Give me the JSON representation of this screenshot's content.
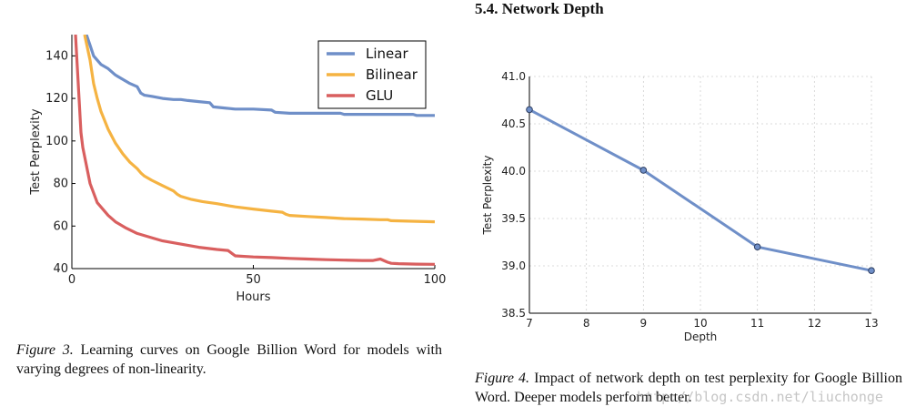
{
  "section_heading": "5.4. Network Depth",
  "figure3": {
    "caption_lead": "Figure 3.",
    "caption_text": " Learning curves on Google Billion Word for models with varying degrees of non-linearity."
  },
  "figure4": {
    "caption_lead": "Figure 4.",
    "caption_text": " Impact of network depth on test perplexity for Google Billion Word. Deeper models perform better."
  },
  "watermark": "http://blog.csdn.net/liuchonge",
  "chart_data": [
    {
      "type": "line",
      "xlabel": "Hours",
      "ylabel": "Test Perplexity",
      "xlim": [
        0,
        100
      ],
      "ylim": [
        40,
        150
      ],
      "xticks": [
        0,
        50,
        100
      ],
      "yticks": [
        40,
        60,
        80,
        100,
        120,
        140
      ],
      "grid": false,
      "legend": "top-right",
      "series": [
        {
          "name": "Linear",
          "color": "#6f8fc8",
          "x": [
            4,
            5,
            6,
            8,
            10,
            12,
            14,
            16,
            18,
            19,
            20,
            22,
            25,
            28,
            30,
            32,
            35,
            38,
            39,
            42,
            45,
            50,
            55,
            56,
            60,
            65,
            70,
            74,
            75,
            80,
            85,
            90,
            94,
            95,
            100
          ],
          "y": [
            150,
            145,
            140,
            136,
            134,
            131,
            129,
            127,
            125.5,
            122.5,
            121.5,
            121,
            120,
            119.5,
            119.5,
            119,
            118.5,
            118,
            116,
            115.5,
            115,
            115,
            114.5,
            113.5,
            113,
            113,
            113,
            113,
            112.5,
            112.5,
            112.5,
            112.5,
            112.5,
            112,
            112
          ]
        },
        {
          "name": "Bilinear",
          "color": "#f5b342",
          "x": [
            3.5,
            5,
            6,
            7,
            8,
            10,
            12,
            14,
            16,
            18,
            19,
            20,
            22,
            25,
            28,
            29,
            30,
            33,
            36,
            40,
            45,
            50,
            55,
            58,
            59,
            60,
            65,
            70,
            75,
            80,
            85,
            87,
            88,
            95,
            100
          ],
          "y": [
            150,
            138,
            127,
            120,
            114,
            105.5,
            99,
            94,
            90,
            87,
            85,
            83.5,
            81.5,
            79,
            76.5,
            75,
            74,
            72.5,
            71.5,
            70.5,
            69,
            68,
            67,
            66.5,
            65.5,
            65,
            64.5,
            64,
            63.5,
            63.3,
            63,
            63,
            62.5,
            62.2,
            62
          ]
        },
        {
          "name": "GLU",
          "color": "#d95f5f",
          "x": [
            1,
            2.5,
            3,
            5,
            7,
            10,
            12,
            15,
            18,
            22,
            25,
            30,
            35,
            40,
            43,
            45,
            50,
            55,
            60,
            65,
            70,
            75,
            80,
            83,
            85,
            87,
            88,
            90,
            95,
            100
          ],
          "y": [
            150,
            104,
            97,
            80,
            71,
            65,
            62,
            59,
            56.5,
            54.5,
            53,
            51.5,
            50,
            49,
            48.5,
            46,
            45.5,
            45.2,
            44.8,
            44.5,
            44.2,
            44,
            43.8,
            43.8,
            44.5,
            43,
            42.5,
            42.3,
            42.1,
            42
          ]
        }
      ]
    },
    {
      "type": "line",
      "xlabel": "Depth",
      "ylabel": "Test Perplexity",
      "xlim": [
        7,
        13
      ],
      "ylim": [
        38.5,
        41.0
      ],
      "xticks": [
        "7",
        "8",
        "9",
        "10",
        "11",
        "12",
        "13"
      ],
      "yticks": [
        "38.5",
        "39.0",
        "39.5",
        "40.0",
        "40.5",
        "41.0"
      ],
      "grid": true,
      "legend": "none",
      "series": [
        {
          "color": "#6f8fc8",
          "x": [
            7,
            9,
            11,
            13
          ],
          "y": [
            40.65,
            40.01,
            39.2,
            38.95
          ]
        }
      ]
    }
  ]
}
